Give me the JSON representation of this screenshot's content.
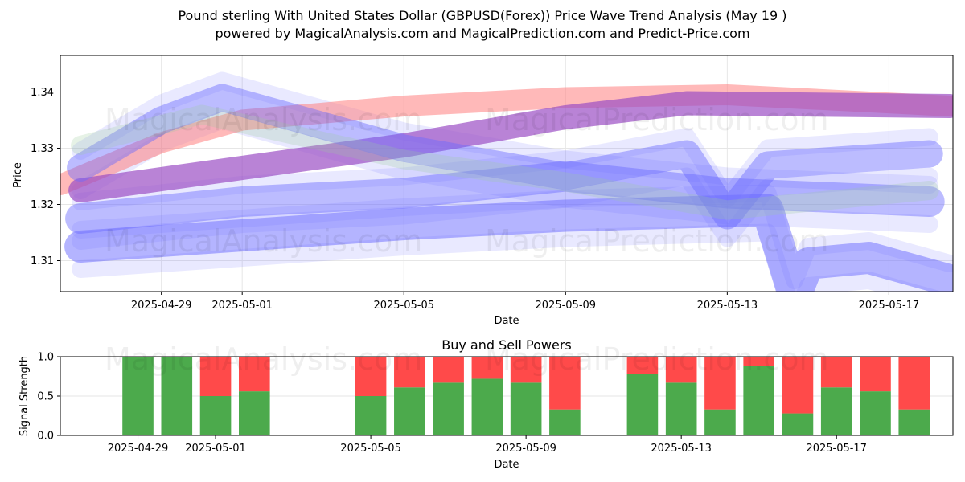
{
  "figure": {
    "title_line1": "Pound sterling With United States Dollar (GBPUSD(Forex)) Price Wave Trend Analysis (May 19 )",
    "title_line2": "powered by MagicalAnalysis.com and MagicalPrediction.com and Predict-Price.com",
    "watermarks": [
      "MagicalAnalysis.com",
      "MagicalPrediction.com"
    ]
  },
  "chart_data": [
    {
      "type": "line",
      "title": "",
      "xlabel": "Date",
      "ylabel": "Price",
      "ylim": [
        1.3045,
        1.3465
      ],
      "xlim": [
        "2025-04-26T12:00",
        "2025-05-18T14:00"
      ],
      "x_ticks": [
        "2025-04-29",
        "2025-05-01",
        "2025-05-05",
        "2025-05-09",
        "2025-05-13",
        "2025-05-17"
      ],
      "y_ticks": [
        1.31,
        1.32,
        1.33,
        1.34
      ],
      "grid": true,
      "colors": {
        "red_band": "#ff7f7f",
        "blue_band": "#6a6aff",
        "purple_band": "#9b4fc4",
        "green_band": "#9acd9a"
      },
      "series": [
        {
          "color": "red",
          "x": [
            "2025-04-26T12:00",
            "2025-04-29",
            "2025-05-01",
            "2025-05-05",
            "2025-05-09",
            "2025-05-13",
            "2025-05-18T12:00"
          ],
          "y": [
            1.3235,
            1.331,
            1.335,
            1.3375,
            1.339,
            1.3395,
            1.3375
          ]
        },
        {
          "color": "purple",
          "x": [
            "2025-04-27",
            "2025-05-01",
            "2025-05-05",
            "2025-05-09",
            "2025-05-12",
            "2025-05-18T12:00"
          ],
          "y": [
            1.3225,
            1.3265,
            1.3305,
            1.3355,
            1.338,
            1.3375
          ]
        },
        {
          "color": "blue",
          "x": [
            "2025-04-27",
            "2025-04-29",
            "2025-04-30T12:00",
            "2025-05-05",
            "2025-05-09",
            "2025-05-12",
            "2025-05-13",
            "2025-05-14",
            "2025-05-18"
          ],
          "y": [
            1.3265,
            1.335,
            1.339,
            1.33,
            1.325,
            1.329,
            1.318,
            1.327,
            1.329
          ]
        },
        {
          "color": "blue",
          "x": [
            "2025-04-27",
            "2025-05-01",
            "2025-05-05",
            "2025-05-09",
            "2025-05-13",
            "2025-05-18"
          ],
          "y": [
            1.3175,
            1.3205,
            1.322,
            1.325,
            1.322,
            1.3205
          ]
        },
        {
          "color": "blue",
          "x": [
            "2025-04-27",
            "2025-05-01",
            "2025-05-05",
            "2025-05-09",
            "2025-05-14",
            "2025-05-14T16:00",
            "2025-05-15",
            "2025-05-16T12:00",
            "2025-05-18T12:00"
          ],
          "y": [
            1.3125,
            1.3145,
            1.3165,
            1.318,
            1.319,
            1.3035,
            1.3095,
            1.3105,
            1.3065
          ]
        },
        {
          "color": "green",
          "x": [
            "2025-04-27",
            "2025-04-30",
            "2025-05-05",
            "2025-05-09",
            "2025-05-13",
            "2025-05-18"
          ],
          "y": [
            1.3305,
            1.336,
            1.328,
            1.324,
            1.319,
            1.3225
          ]
        }
      ]
    },
    {
      "type": "bar",
      "title": "Buy and Sell Powers",
      "xlabel": "Date",
      "ylabel": "Signal Strength",
      "ylim": [
        0,
        1.0
      ],
      "y_ticks": [
        0.0,
        0.5,
        1.0
      ],
      "x_ticks": [
        "2025-04-29",
        "2025-05-01",
        "2025-05-05",
        "2025-05-09",
        "2025-05-13",
        "2025-05-17"
      ],
      "grid": true,
      "colors": {
        "buy": "#4caa4c",
        "sell": "#ff4a4a"
      },
      "categories": [
        "2025-04-29",
        "2025-04-30",
        "2025-05-01",
        "2025-05-02",
        "2025-05-05",
        "2025-05-06",
        "2025-05-07",
        "2025-05-08",
        "2025-05-09",
        "2025-05-10",
        "2025-05-12",
        "2025-05-13",
        "2025-05-14",
        "2025-05-15",
        "2025-05-16",
        "2025-05-17",
        "2025-05-18",
        "2025-05-19"
      ],
      "series": [
        {
          "name": "buy",
          "values": [
            1.0,
            1.0,
            0.5,
            0.56,
            0.5,
            0.61,
            0.67,
            0.72,
            0.67,
            0.33,
            0.78,
            0.67,
            0.33,
            0.88,
            0.28,
            0.61,
            0.56,
            0.33
          ]
        },
        {
          "name": "sell",
          "values": [
            0.0,
            0.0,
            0.5,
            0.44,
            0.5,
            0.39,
            0.33,
            0.28,
            0.33,
            0.67,
            0.22,
            0.33,
            0.67,
            0.12,
            0.72,
            0.39,
            0.44,
            0.67
          ]
        }
      ]
    }
  ]
}
